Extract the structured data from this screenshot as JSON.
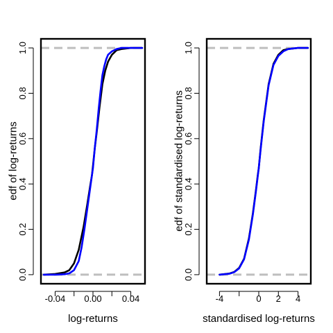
{
  "chart_data": [
    {
      "type": "line",
      "xlabel": "log-returns",
      "ylabel": "edf of log-returns",
      "xlim": [
        -0.055,
        0.055
      ],
      "ylim": [
        -0.04,
        1.04
      ],
      "xticks": [
        -0.04,
        0.0,
        0.04
      ],
      "xtick_labels": [
        "-0.04",
        "0.00",
        "0.04"
      ],
      "xticks_unlabeled": [
        -0.02,
        0.02
      ],
      "yticks": [
        0.0,
        0.2,
        0.4,
        0.6,
        0.8,
        1.0
      ],
      "ytick_labels": [
        "0.0",
        "0.2",
        "0.4",
        "0.6",
        "0.8",
        "1.0"
      ],
      "hlines": [
        0.0,
        1.0
      ],
      "hline_color": "#bebebe",
      "series": [
        {
          "color": "#000000",
          "x": [
            -0.052,
            -0.04,
            -0.03,
            -0.025,
            -0.02,
            -0.015,
            -0.01,
            -0.006,
            -0.003,
            -0.001,
            0.0,
            0.002,
            0.004,
            0.007,
            0.01,
            0.013,
            0.016,
            0.02,
            0.025,
            0.03,
            0.04,
            0.052
          ],
          "y": [
            0.0,
            0.003,
            0.01,
            0.02,
            0.05,
            0.11,
            0.21,
            0.31,
            0.39,
            0.44,
            0.48,
            0.56,
            0.63,
            0.74,
            0.84,
            0.9,
            0.94,
            0.97,
            0.99,
            0.995,
            1.0,
            1.0
          ]
        },
        {
          "color": "#0000ff",
          "x": [
            -0.052,
            -0.04,
            -0.03,
            -0.025,
            -0.02,
            -0.015,
            -0.012,
            -0.009,
            -0.006,
            -0.003,
            -0.001,
            0.0,
            0.002,
            0.004,
            0.006,
            0.008,
            0.01,
            0.012,
            0.014,
            0.016,
            0.02,
            0.025,
            0.03,
            0.04,
            0.052
          ],
          "y": [
            0.0,
            0.0,
            0.002,
            0.006,
            0.02,
            0.06,
            0.12,
            0.2,
            0.29,
            0.38,
            0.44,
            0.47,
            0.56,
            0.64,
            0.73,
            0.81,
            0.88,
            0.92,
            0.95,
            0.97,
            0.985,
            0.995,
            1.0,
            1.0,
            1.0
          ]
        }
      ]
    },
    {
      "type": "line",
      "xlabel": "standardised log-returns",
      "ylabel": "edf of standardised log-returns",
      "xlim": [
        -5.3,
        5.3
      ],
      "ylim": [
        -0.04,
        1.04
      ],
      "xticks": [
        -4,
        0,
        2,
        4
      ],
      "xtick_labels": [
        "-4",
        "0",
        "2",
        "4"
      ],
      "xticks_unlabeled": [
        -2
      ],
      "yticks": [
        0.0,
        0.2,
        0.4,
        0.6,
        0.8,
        1.0
      ],
      "ytick_labels": [
        "0.0",
        "0.2",
        "0.4",
        "0.6",
        "0.8",
        "1.0"
      ],
      "hlines": [
        0.0,
        1.0
      ],
      "hline_color": "#bebebe",
      "series": [
        {
          "color": "#000000",
          "x": [
            -4.0,
            -3.0,
            -2.5,
            -2.0,
            -1.5,
            -1.0,
            -0.6,
            -0.3,
            -0.1,
            0.0,
            0.2,
            0.5,
            1.0,
            1.5,
            2.0,
            2.5,
            3.0,
            4.0,
            5.0
          ],
          "y": [
            0.0,
            0.005,
            0.012,
            0.03,
            0.07,
            0.16,
            0.27,
            0.37,
            0.44,
            0.47,
            0.56,
            0.68,
            0.84,
            0.93,
            0.97,
            0.99,
            0.995,
            1.0,
            1.0
          ]
        },
        {
          "color": "#0000ff",
          "x": [
            -4.0,
            -3.0,
            -2.5,
            -2.0,
            -1.5,
            -1.0,
            -0.6,
            -0.3,
            -0.1,
            0.0,
            0.2,
            0.5,
            1.0,
            1.5,
            2.0,
            2.5,
            3.0,
            4.0,
            5.0
          ],
          "y": [
            0.0,
            0.004,
            0.011,
            0.028,
            0.068,
            0.155,
            0.265,
            0.365,
            0.435,
            0.47,
            0.555,
            0.675,
            0.835,
            0.925,
            0.965,
            0.985,
            0.995,
            1.0,
            1.0
          ]
        }
      ]
    }
  ]
}
